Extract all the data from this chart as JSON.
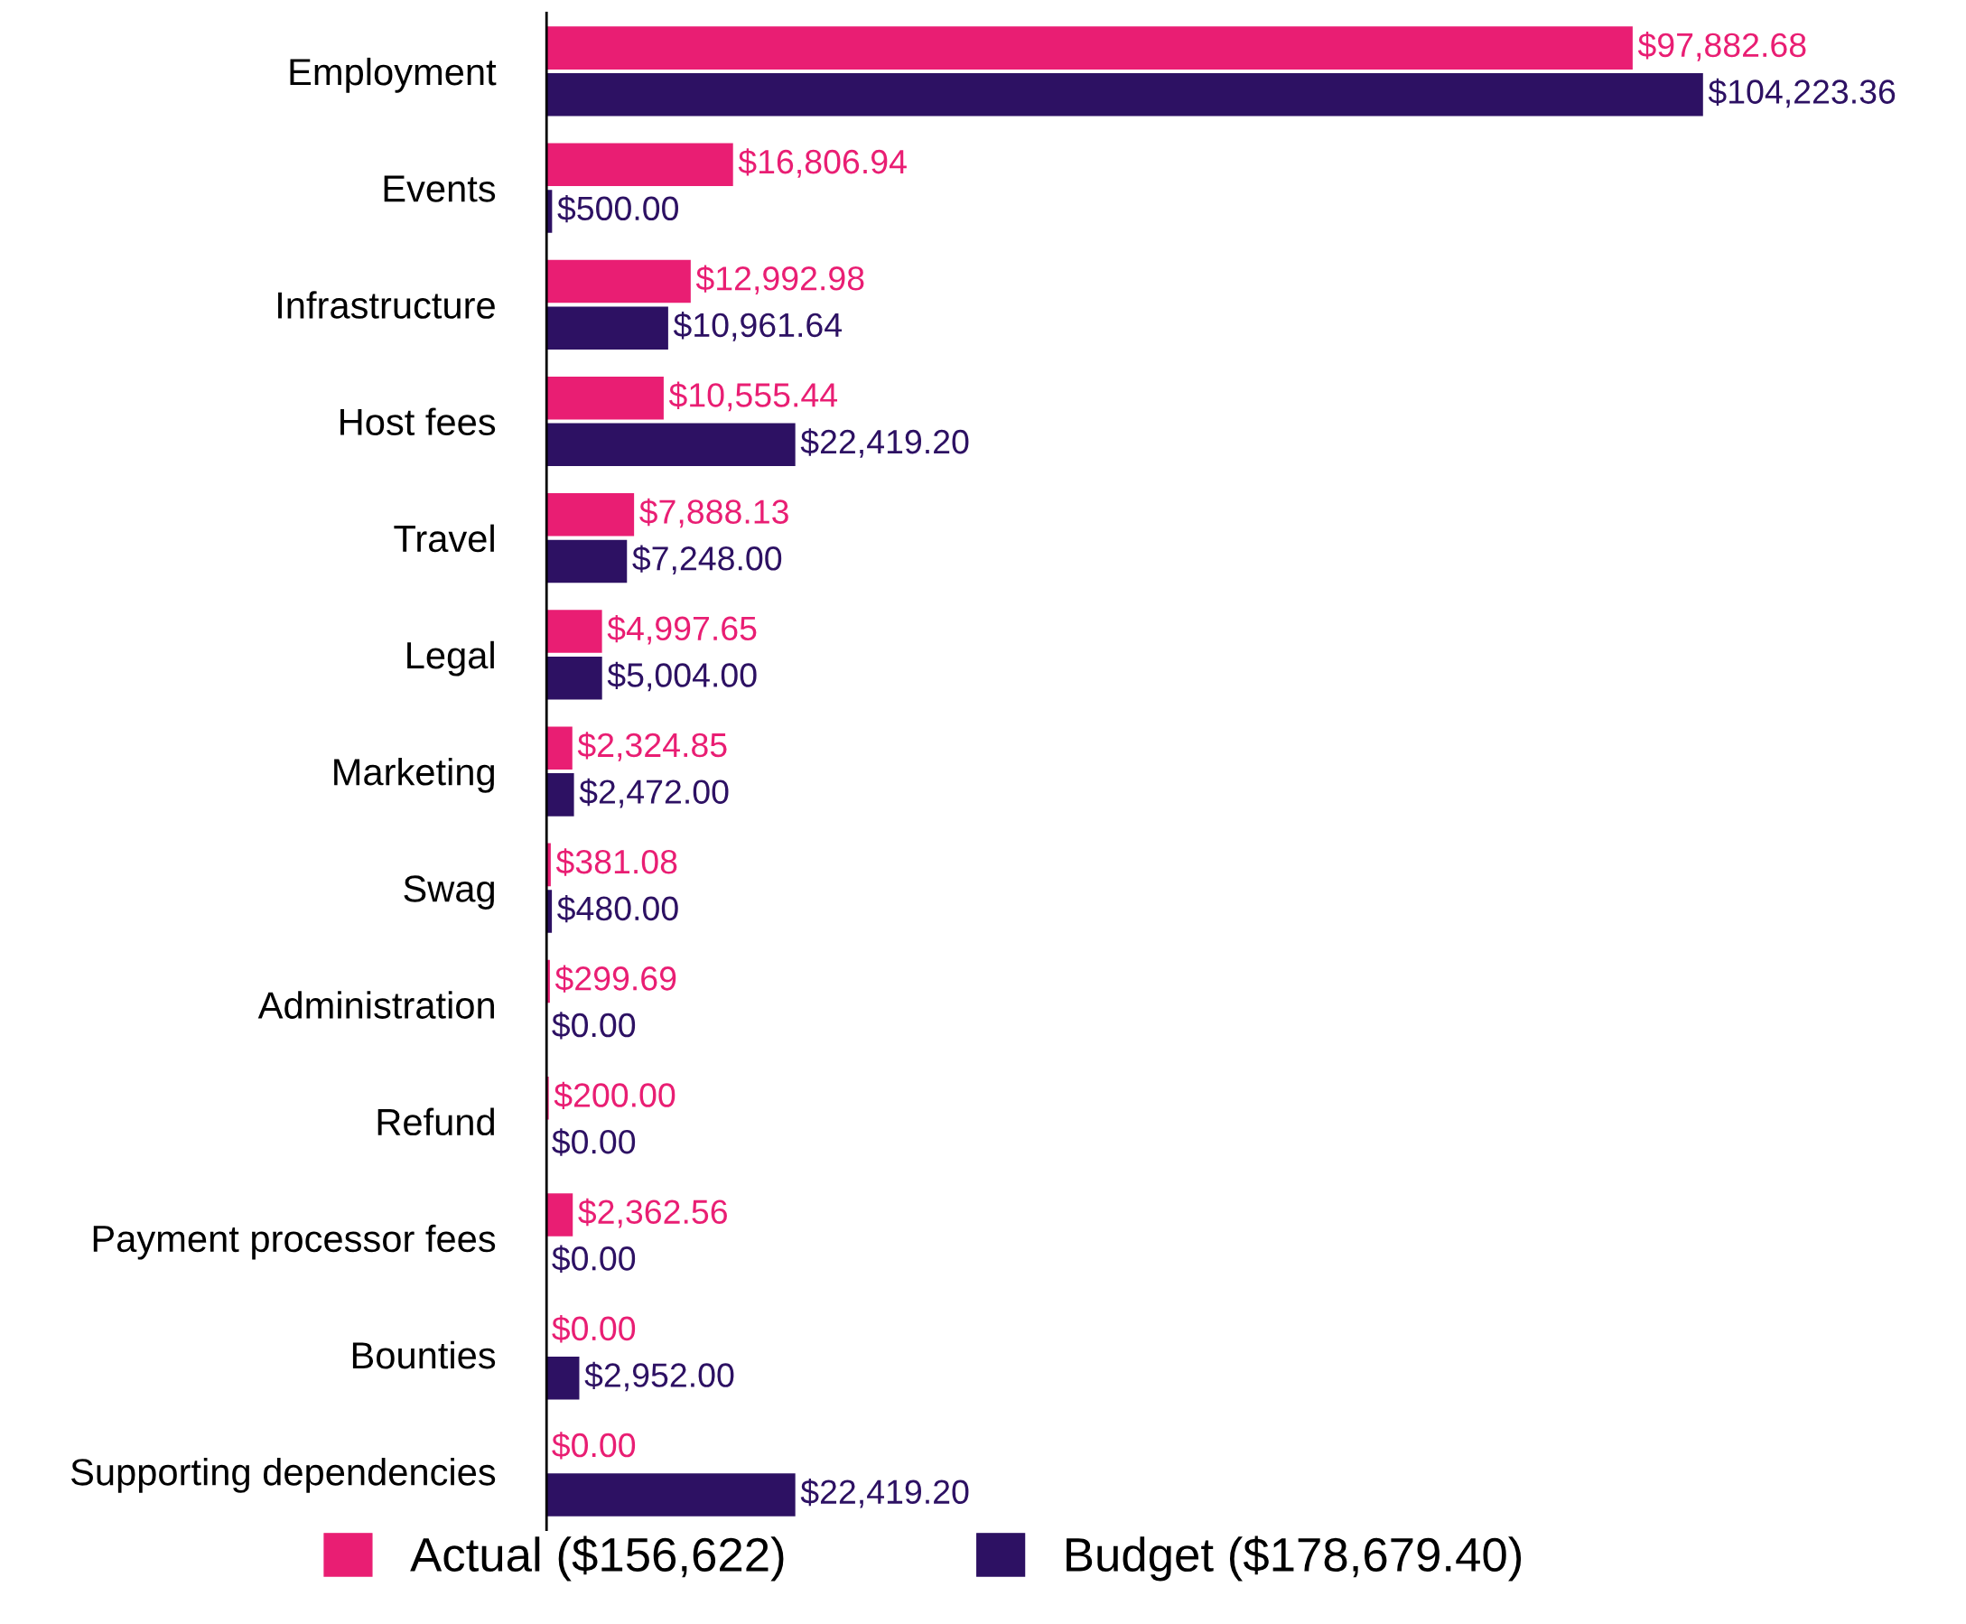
{
  "chart_data": {
    "type": "bar",
    "orientation": "horizontal",
    "legend": "bottom",
    "categories": [
      "Employment",
      "Events",
      "Infrastructure",
      "Host fees",
      "Travel",
      "Legal",
      "Marketing",
      "Swag",
      "Administration",
      "Refund",
      "Payment processor fees",
      "Bounties",
      "Supporting dependencies"
    ],
    "series": [
      {
        "name": "Actual ($156,622)",
        "color": "#e91e73",
        "values": [
          97882.68,
          16806.94,
          12992.98,
          10555.44,
          7888.13,
          4997.65,
          2324.85,
          381.08,
          299.69,
          200.0,
          2362.56,
          0.0,
          0.0
        ],
        "value_labels": [
          "$97,882.68",
          "$16,806.94",
          "$12,992.98",
          "$10,555.44",
          "$7,888.13",
          "$4,997.65",
          "$2,324.85",
          "$381.08",
          "$299.69",
          "$200.00",
          "$2,362.56",
          "$0.00",
          "$0.00"
        ]
      },
      {
        "name": "Budget ($178,679.40)",
        "color": "#2d1163",
        "values": [
          104223.36,
          500.0,
          10961.64,
          22419.2,
          7248.0,
          5004.0,
          2472.0,
          480.0,
          0.0,
          0.0,
          0.0,
          2952.0,
          22419.2
        ],
        "value_labels": [
          "$104,223.36",
          "$500.00",
          "$10,961.64",
          "$22,419.20",
          "$7,248.00",
          "$5,004.00",
          "$2,472.00",
          "$480.00",
          "$0.00",
          "$0.00",
          "$0.00",
          "$2,952.00",
          "$22,419.20"
        ]
      }
    ]
  }
}
